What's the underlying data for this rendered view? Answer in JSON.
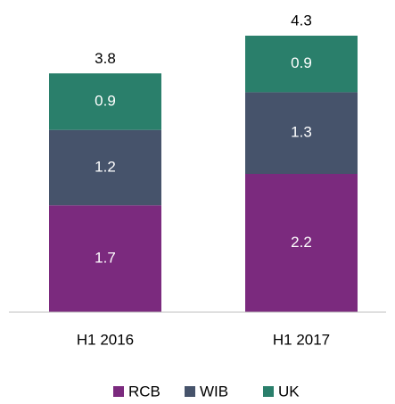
{
  "chart_data": {
    "type": "stacked_bar",
    "categories": [
      "H1 2016",
      "H1 2017"
    ],
    "series": [
      {
        "name": "RCB",
        "color": "#7b2a7e",
        "values": [
          1.7,
          2.2
        ]
      },
      {
        "name": "WIB",
        "color": "#46536b",
        "values": [
          1.2,
          1.3
        ]
      },
      {
        "name": "UK",
        "color": "#2a7f6b",
        "values": [
          0.9,
          0.9
        ]
      }
    ],
    "totals": [
      3.8,
      4.3
    ]
  }
}
